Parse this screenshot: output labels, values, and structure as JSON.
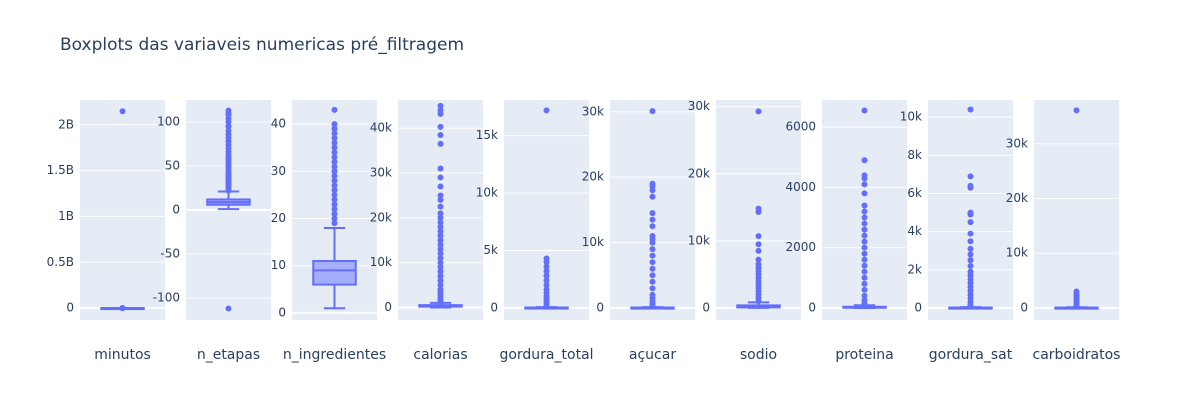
{
  "title": "Boxplots das variaveis numericas pré_filtragem",
  "chart_data": [
    {
      "type": "box",
      "x_label": "minutos",
      "color": "#636efa",
      "grid": true,
      "ylim": [
        -130000000,
        2270000000
      ],
      "yticks": [
        0,
        {
          "value": 500000000,
          "label": "0.5B"
        },
        {
          "value": 1000000000,
          "label": "1B"
        },
        {
          "value": 1500000000,
          "label": "1.5B"
        },
        {
          "value": 2000000000,
          "label": "2B"
        }
      ],
      "lowerfence": 0,
      "q1": 20,
      "median": 40,
      "q3": 65,
      "upperfence": 130,
      "outliers": [
        200,
        300,
        500,
        1000,
        2147483647
      ]
    },
    {
      "type": "box",
      "x_label": "n_etapas",
      "color": "#636efa",
      "grid": true,
      "ylim": [
        -125,
        125
      ],
      "yticks": [
        -100,
        -50,
        0,
        50,
        100
      ],
      "lowerfence": 1,
      "q1": 6,
      "median": 9,
      "q3": 12,
      "upperfence": 21,
      "outliers": [
        -112,
        22,
        24,
        26,
        28,
        30,
        32,
        34,
        36,
        38,
        40,
        42,
        45,
        48,
        50,
        52,
        55,
        58,
        60,
        63,
        66,
        70,
        74,
        78,
        82,
        86,
        90,
        95,
        100,
        104,
        108,
        110,
        113
      ]
    },
    {
      "type": "box",
      "x_label": "n_ingredientes",
      "color": "#636efa",
      "grid": true,
      "ylim": [
        -1.5,
        45.1
      ],
      "yticks": [
        0,
        10,
        20,
        30,
        40
      ],
      "lowerfence": 1,
      "q1": 6,
      "median": 9,
      "q3": 11,
      "upperfence": 18,
      "outliers": [
        19,
        20,
        21,
        22,
        23,
        24,
        25,
        26,
        27,
        28,
        29,
        30,
        31,
        32,
        33,
        34,
        35,
        36,
        37,
        38,
        39,
        40,
        43
      ]
    },
    {
      "type": "box",
      "x_label": "calorias",
      "color": "#636efa",
      "grid": true,
      "ylim": [
        -2800,
        46300
      ],
      "yticks": [
        0,
        {
          "value": 10000,
          "label": "10k"
        },
        {
          "value": 20000,
          "label": "20k"
        },
        {
          "value": 30000,
          "label": "30k"
        },
        {
          "value": 40000,
          "label": "40k"
        }
      ],
      "lowerfence": 0,
      "q1": 180,
      "median": 315,
      "q3": 520,
      "upperfence": 1030,
      "outliers": [
        1100,
        1500,
        2000,
        2500,
        3000,
        3500,
        4000,
        5000,
        6000,
        7000,
        8000,
        9000,
        10000,
        11000,
        12000,
        13000,
        14000,
        15000,
        16000,
        17000,
        18000,
        19000,
        20000,
        21000,
        22500,
        24000,
        25000,
        27000,
        29000,
        31000,
        36500,
        38500,
        40300,
        43200,
        44000,
        45000
      ]
    },
    {
      "type": "box",
      "x_label": "gordura_total",
      "color": "#636efa",
      "grid": true,
      "ylim": [
        -1050,
        18100
      ],
      "yticks": [
        0,
        {
          "value": 5000,
          "label": "5k"
        },
        {
          "value": 10000,
          "label": "10k"
        },
        {
          "value": 15000,
          "label": "15k"
        }
      ],
      "lowerfence": 0,
      "q1": 8,
      "median": 17,
      "q3": 35,
      "upperfence": 75,
      "outliers": [
        100,
        200,
        400,
        600,
        800,
        1000,
        1300,
        1600,
        2000,
        2400,
        2800,
        3200,
        3600,
        4000,
        4300,
        17200
      ]
    },
    {
      "type": "box",
      "x_label": "açucar",
      "color": "#636efa",
      "grid": true,
      "ylim": [
        -1840,
        31800
      ],
      "yticks": [
        0,
        {
          "value": 10000,
          "label": "10k"
        },
        {
          "value": 20000,
          "label": "20k"
        },
        {
          "value": 30000,
          "label": "30k"
        }
      ],
      "lowerfence": 0,
      "q1": 10,
      "median": 28,
      "q3": 60,
      "upperfence": 130,
      "outliers": [
        300,
        600,
        1000,
        1500,
        2000,
        3000,
        4000,
        5000,
        6000,
        7000,
        8000,
        9000,
        10000,
        10500,
        11000,
        12500,
        13500,
        14500,
        17000,
        18000,
        18600,
        19000,
        30100
      ]
    },
    {
      "type": "box",
      "x_label": "sodio",
      "color": "#636efa",
      "grid": true,
      "ylim": [
        -1800,
        31000
      ],
      "yticks": [
        0,
        {
          "value": 10000,
          "label": "10k"
        },
        {
          "value": 20000,
          "label": "20k"
        },
        {
          "value": 30000,
          "label": "30k"
        }
      ],
      "lowerfence": 0,
      "q1": 80,
      "median": 180,
      "q3": 380,
      "upperfence": 830,
      "outliers": [
        1000,
        1500,
        2000,
        2500,
        3000,
        3500,
        4000,
        4500,
        5000,
        5500,
        6000,
        6500,
        7200,
        8500,
        9500,
        10700,
        14300,
        14800,
        29300
      ]
    },
    {
      "type": "box",
      "x_label": "proteina",
      "color": "#636efa",
      "grid": true,
      "ylim": [
        -400,
        6900
      ],
      "yticks": [
        0,
        2000,
        4000,
        6000
      ],
      "lowerfence": 0,
      "q1": 7,
      "median": 18,
      "q3": 40,
      "upperfence": 90,
      "outliers": [
        150,
        250,
        400,
        600,
        800,
        1000,
        1200,
        1400,
        1600,
        1800,
        2000,
        2200,
        2400,
        2600,
        2800,
        3000,
        3200,
        3400,
        3800,
        4100,
        4300,
        4400,
        4900,
        6550
      ]
    },
    {
      "type": "box",
      "x_label": "gordura_sat",
      "color": "#636efa",
      "grid": true,
      "ylim": [
        -630,
        10900
      ],
      "yticks": [
        0,
        {
          "value": 2000,
          "label": "2k"
        },
        {
          "value": 4000,
          "label": "4k"
        },
        {
          "value": 6000,
          "label": "6k"
        },
        {
          "value": 8000,
          "label": "8k"
        },
        {
          "value": 10000,
          "label": "10k"
        }
      ],
      "lowerfence": 0,
      "q1": 5,
      "median": 10,
      "q3": 20,
      "upperfence": 42,
      "outliers": [
        80,
        150,
        300,
        500,
        700,
        900,
        1100,
        1300,
        1500,
        1700,
        1900,
        2200,
        2500,
        2800,
        3100,
        3500,
        3900,
        4500,
        4900,
        5000,
        6300,
        6400,
        6900,
        10400
      ]
    },
    {
      "type": "box",
      "x_label": "carboidratos",
      "color": "#636efa",
      "grid": true,
      "ylim": [
        -2200,
        38000
      ],
      "yticks": [
        0,
        {
          "value": 10000,
          "label": "10k"
        },
        {
          "value": 20000,
          "label": "20k"
        },
        {
          "value": 30000,
          "label": "30k"
        }
      ],
      "lowerfence": 0,
      "q1": 12,
      "median": 30,
      "q3": 60,
      "upperfence": 130,
      "outliers": [
        300,
        500,
        800,
        1100,
        1400,
        1800,
        2200,
        2600,
        3000,
        36100
      ]
    }
  ]
}
